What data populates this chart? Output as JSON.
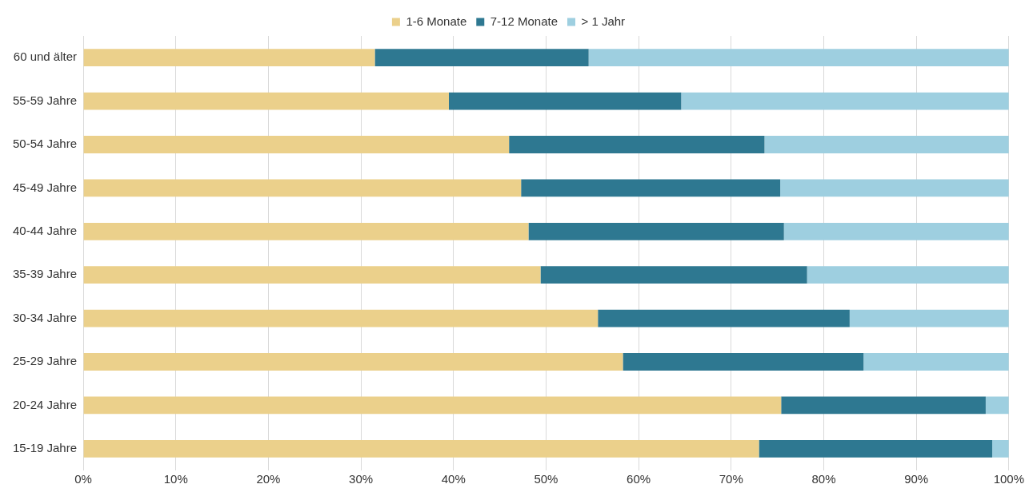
{
  "chart_data": {
    "type": "bar",
    "orientation": "horizontal",
    "stacked": true,
    "categories": [
      "60 und älter",
      "55-59 Jahre",
      "50-54 Jahre",
      "45-49 Jahre",
      "40-44 Jahre",
      "35-39 Jahre",
      "30-34 Jahre",
      "25-29 Jahre",
      "20-24 Jahre",
      "15-19 Jahre"
    ],
    "series": [
      {
        "name": "1-6 Monate",
        "color": "#ebd08b",
        "values": [
          31.5,
          39.5,
          46.0,
          47.3,
          48.1,
          49.4,
          55.6,
          58.3,
          75.4,
          73.0
        ]
      },
      {
        "name": "7-12 Monate",
        "color": "#2e7891",
        "values": [
          23.1,
          25.1,
          27.6,
          28.0,
          27.6,
          28.8,
          27.2,
          26.0,
          22.1,
          25.2
        ]
      },
      {
        "name": "> 1 Jahr",
        "color": "#9ecfe0",
        "values": [
          45.4,
          35.4,
          26.4,
          24.7,
          24.3,
          21.8,
          17.2,
          15.7,
          2.5,
          1.8
        ]
      }
    ],
    "xlim": [
      0,
      100
    ],
    "xticks": [
      {
        "value": 0,
        "label": "0%"
      },
      {
        "value": 10,
        "label": "10%"
      },
      {
        "value": 20,
        "label": "20%"
      },
      {
        "value": 30,
        "label": "30%"
      },
      {
        "value": 40,
        "label": "40%"
      },
      {
        "value": 50,
        "label": "50%"
      },
      {
        "value": 60,
        "label": "60%"
      },
      {
        "value": 70,
        "label": "70%"
      },
      {
        "value": 80,
        "label": "80%"
      },
      {
        "value": 90,
        "label": "90%"
      },
      {
        "value": 100,
        "label": "100%"
      }
    ],
    "grid": "x",
    "legend": "top"
  }
}
